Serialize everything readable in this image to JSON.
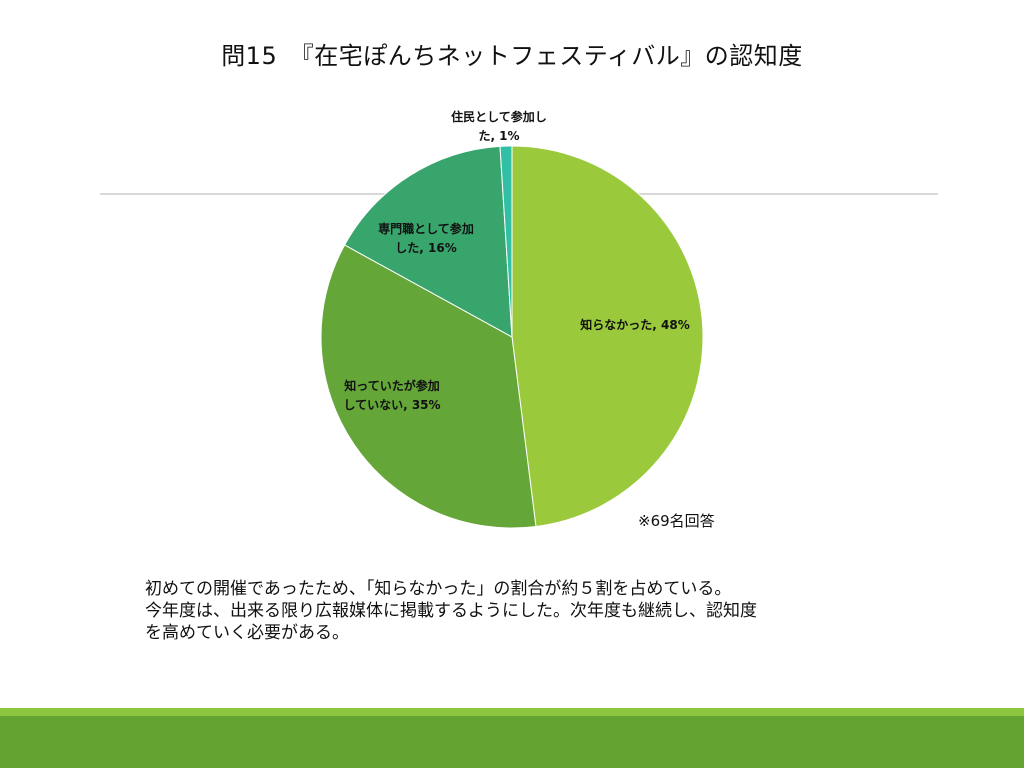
{
  "title": "問15　『在宅ぽんちネットフェスティバル』の認知度",
  "note": "※69名回答",
  "summary_lines": [
    "初めての開催であったため、「知らなかった」の割合が約５割を占めている。",
    "今年度は、出来る限り広報媒体に掲載するようにした。次年度も継続し、認知度",
    "を高めていく必要がある。"
  ],
  "colors": {
    "divider": "#d9d9d9",
    "footer_light": "#8cc63e",
    "footer_dark": "#62a332"
  },
  "chart_data": {
    "type": "pie",
    "start": "12 o'clock",
    "direction": "clockwise",
    "slices": [
      {
        "label": "知らなかった",
        "value": 48,
        "value_text": "48%",
        "label_lines": [
          "知らなかった, 48%"
        ],
        "color": "#9aca3c"
      },
      {
        "label": "知っていたが参加していない",
        "value": 35,
        "value_text": "35%",
        "label_lines": [
          "知っていたが参加",
          "していない, 35%"
        ],
        "color": "#64a638"
      },
      {
        "label": "専門職として参加した",
        "value": 16,
        "value_text": "16%",
        "label_lines": [
          "専門職として参加",
          "した, 16%"
        ],
        "color": "#38a56d"
      },
      {
        "label": "住民として参加した",
        "value": 1,
        "value_text": "1%",
        "label_lines": [
          "住民として参加し",
          "た, 1%"
        ],
        "color": "#33bfa6"
      }
    ]
  }
}
